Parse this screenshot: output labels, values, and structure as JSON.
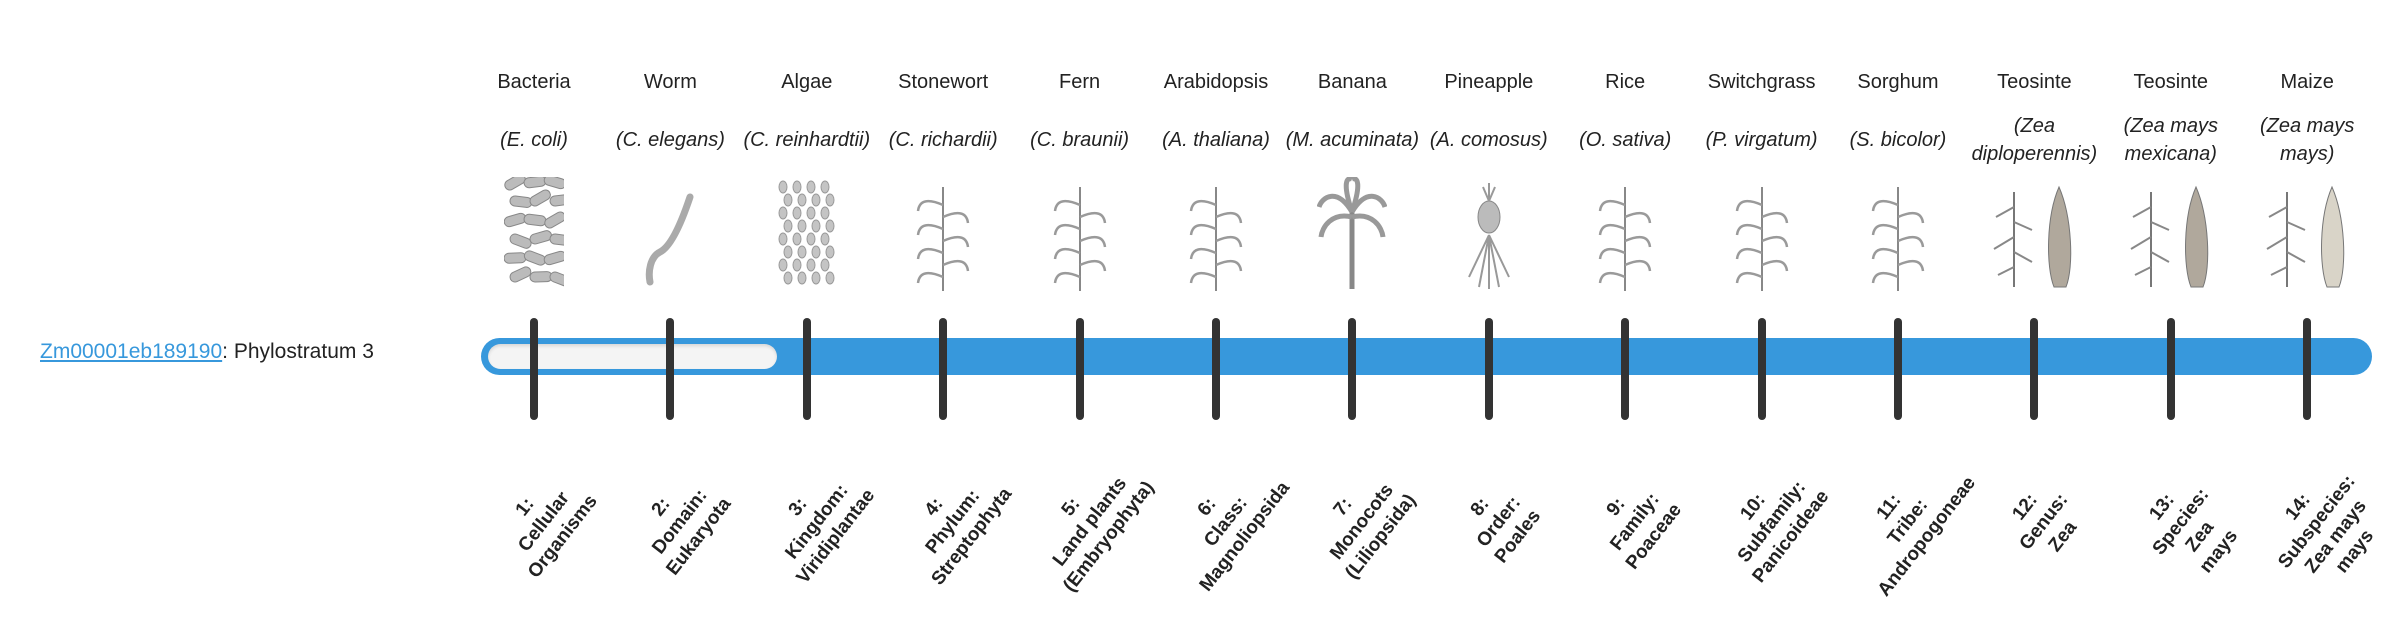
{
  "gene": {
    "id": "Zm00001eb189190",
    "separator": ": ",
    "stratum_label": "Phylostratum 3"
  },
  "progress": {
    "phylostratum": 3,
    "total": 14
  },
  "colors": {
    "bar": "#3798dc",
    "fill": "#f4f4f4",
    "tick": "#333333",
    "link": "#3798dc"
  },
  "columns": [
    {
      "name": "Bacteria",
      "sci": "(E. coli)",
      "icon": "bacteria-icon",
      "label": [
        "1:",
        "Cellular",
        "Organisms"
      ]
    },
    {
      "name": "Worm",
      "sci": "(C. elegans)",
      "icon": "worm-icon",
      "label": [
        "2:",
        "Domain:",
        "Eukaryota"
      ]
    },
    {
      "name": "Algae",
      "sci": "(C. reinhardtii)",
      "icon": "algae-icon",
      "label": [
        "3:",
        "Kingdom:",
        "Viridiplantae"
      ]
    },
    {
      "name": "Stonewort",
      "sci": "(C. richardii)",
      "icon": "stonewort-icon",
      "label": [
        "4:",
        "Phylum:",
        "Streptophyta"
      ]
    },
    {
      "name": "Fern",
      "sci": "(C. braunii)",
      "icon": "fern-icon",
      "label": [
        "5:",
        "Land plants",
        "(Embryophyta)"
      ]
    },
    {
      "name": "Arabidopsis",
      "sci": "(A. thaliana)",
      "icon": "arabidopsis-icon",
      "label": [
        "6:",
        "Class:",
        "Magnoliopsida"
      ]
    },
    {
      "name": "Banana",
      "sci": "(M. acuminata)",
      "icon": "banana-icon",
      "label": [
        "7:",
        "Monocots",
        "(Liliopsida)"
      ]
    },
    {
      "name": "Pineapple",
      "sci": "(A. comosus)",
      "icon": "pineapple-icon",
      "label": [
        "8:",
        "Order:",
        "Poales"
      ]
    },
    {
      "name": "Rice",
      "sci": "(O. sativa)",
      "icon": "rice-icon",
      "label": [
        "9:",
        "Family:",
        "Poaceae"
      ]
    },
    {
      "name": "Switchgrass",
      "sci": "(P. virgatum)",
      "icon": "switchgrass-icon",
      "label": [
        "10:",
        "Subfamily:",
        "Panicoideae"
      ]
    },
    {
      "name": "Sorghum",
      "sci": "(S. bicolor)",
      "icon": "sorghum-icon",
      "label": [
        "11:",
        "Tribe:",
        "Andropogoneae"
      ]
    },
    {
      "name": "Teosinte",
      "sci": "(Zea diploperennis)",
      "icon": "teosinte-icon",
      "label": [
        "12:",
        "Genus:",
        "Zea"
      ]
    },
    {
      "name": "Teosinte",
      "sci": "(Zea mays mexicana)",
      "icon": "teosinte-icon",
      "label": [
        "13:",
        "Species:",
        "Zea",
        "mays"
      ]
    },
    {
      "name": "Maize",
      "sci": "(Zea mays mays)",
      "icon": "maize-icon",
      "label": [
        "14:",
        "Subspecies:",
        "Zea mays",
        "mays"
      ]
    }
  ]
}
